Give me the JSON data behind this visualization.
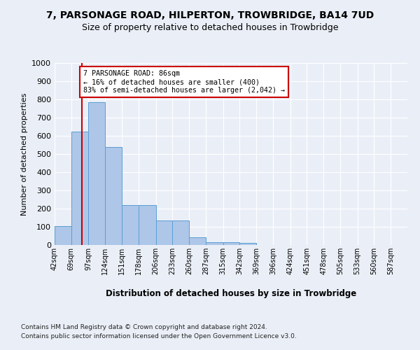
{
  "title_line1": "7, PARSONAGE ROAD, HILPERTON, TROWBRIDGE, BA14 7UD",
  "title_line2": "Size of property relative to detached houses in Trowbridge",
  "xlabel": "Distribution of detached houses by size in Trowbridge",
  "ylabel": "Number of detached properties",
  "bin_labels": [
    "42sqm",
    "69sqm",
    "97sqm",
    "124sqm",
    "151sqm",
    "178sqm",
    "206sqm",
    "233sqm",
    "260sqm",
    "287sqm",
    "315sqm",
    "342sqm",
    "369sqm",
    "396sqm",
    "424sqm",
    "451sqm",
    "478sqm",
    "505sqm",
    "533sqm",
    "560sqm",
    "587sqm"
  ],
  "bar_values": [
    103,
    625,
    785,
    540,
    220,
    220,
    135,
    135,
    42,
    15,
    15,
    10,
    0,
    0,
    0,
    0,
    0,
    0,
    0,
    0,
    0
  ],
  "bar_color": "#aec6e8",
  "bar_edge_color": "#5a9fd4",
  "property_line_x": 86,
  "bin_edges": [
    42,
    69,
    97,
    124,
    151,
    178,
    206,
    233,
    260,
    287,
    315,
    342,
    369,
    396,
    424,
    451,
    478,
    505,
    533,
    560,
    587,
    614
  ],
  "annotation_text": "7 PARSONAGE ROAD: 86sqm\n← 16% of detached houses are smaller (400)\n83% of semi-detached houses are larger (2,042) →",
  "annotation_box_color": "#ffffff",
  "annotation_box_edge_color": "#cc0000",
  "red_line_color": "#cc0000",
  "ylim": [
    0,
    1000
  ],
  "yticks": [
    0,
    100,
    200,
    300,
    400,
    500,
    600,
    700,
    800,
    900,
    1000
  ],
  "footer_line1": "Contains HM Land Registry data © Crown copyright and database right 2024.",
  "footer_line2": "Contains public sector information licensed under the Open Government Licence v3.0.",
  "bg_color": "#eaeff7",
  "plot_bg_color": "#eaeff7"
}
